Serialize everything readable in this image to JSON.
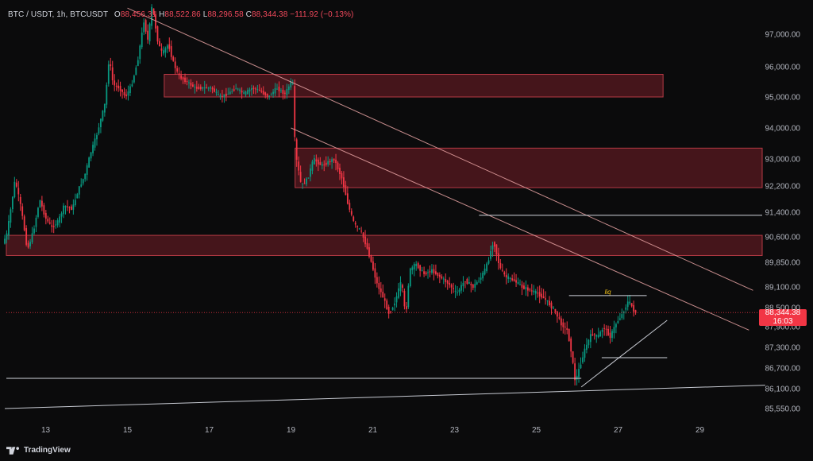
{
  "header": {
    "symbol": "BTC / USDT, 1h, BTCUSDT",
    "open_label": "O",
    "open": "88,456.31",
    "high_label": "H",
    "high": "88,522.86",
    "low_label": "L",
    "low": "88,296.58",
    "close_label": "C",
    "close": "88,344.38",
    "change": "−111.92 (−0.13%)"
  },
  "price_tag": {
    "price": "88,344.38",
    "countdown": "16:03"
  },
  "annotation": {
    "liq_label": "liq"
  },
  "footer": {
    "brand": "TradingView"
  },
  "colors": {
    "background": "#0b0b0c",
    "up_candle": "#089981",
    "down_candle": "#f23645",
    "zone_fill": "#5a1a20",
    "zone_border": "#b73a45",
    "trendline": "#e7a3a3",
    "level_line": "#d1d4dc",
    "liq_text": "#f5c518"
  },
  "chart_data": {
    "type": "candlestick",
    "title": "BTC / USDT, 1h, BTCUSDT",
    "xlabel": "",
    "ylabel": "",
    "x_ticks": [
      "13",
      "15",
      "17",
      "19",
      "21",
      "23",
      "25",
      "27",
      "29"
    ],
    "y_ticks": [
      "97,000.00",
      "96,000.00",
      "95,000.00",
      "94,000.00",
      "93,000.00",
      "92,200.00",
      "91,400.00",
      "90,600.00",
      "89,850.00",
      "89,100.00",
      "88,500.00",
      "87,900.00",
      "87,300.00",
      "86,700.00",
      "86,100.00",
      "85,550.00"
    ],
    "x_range_days": [
      12.0,
      30.6
    ],
    "grid": false,
    "last_price": 88344.38,
    "price_path": [
      [
        12.0,
        90400
      ],
      [
        12.1,
        90700
      ],
      [
        12.3,
        92400
      ],
      [
        12.45,
        91500
      ],
      [
        12.6,
        90200
      ],
      [
        12.75,
        90800
      ],
      [
        12.9,
        91800
      ],
      [
        13.05,
        91200
      ],
      [
        13.2,
        90900
      ],
      [
        13.35,
        91100
      ],
      [
        13.5,
        91600
      ],
      [
        13.7,
        91500
      ],
      [
        13.85,
        92100
      ],
      [
        14.0,
        92500
      ],
      [
        14.15,
        93200
      ],
      [
        14.3,
        93800
      ],
      [
        14.5,
        94800
      ],
      [
        14.6,
        96300
      ],
      [
        14.7,
        95400
      ],
      [
        14.85,
        95300
      ],
      [
        15.0,
        95000
      ],
      [
        15.15,
        95400
      ],
      [
        15.3,
        96200
      ],
      [
        15.45,
        97400
      ],
      [
        15.55,
        96800
      ],
      [
        15.65,
        97900
      ],
      [
        15.8,
        96700
      ],
      [
        15.9,
        96400
      ],
      [
        16.05,
        96700
      ],
      [
        16.15,
        96200
      ],
      [
        16.3,
        95700
      ],
      [
        16.5,
        95500
      ],
      [
        16.7,
        95300
      ],
      [
        16.9,
        95300
      ],
      [
        17.1,
        95300
      ],
      [
        17.3,
        95000
      ],
      [
        17.5,
        95100
      ],
      [
        17.7,
        95300
      ],
      [
        17.9,
        95100
      ],
      [
        18.1,
        95300
      ],
      [
        18.3,
        95200
      ],
      [
        18.5,
        95000
      ],
      [
        18.7,
        95300
      ],
      [
        18.9,
        95100
      ],
      [
        19.05,
        95500
      ],
      [
        19.1,
        95400
      ],
      [
        19.15,
        93200
      ],
      [
        19.3,
        92200
      ],
      [
        19.45,
        92400
      ],
      [
        19.6,
        93000
      ],
      [
        19.8,
        92800
      ],
      [
        19.95,
        92900
      ],
      [
        20.1,
        93000
      ],
      [
        20.3,
        92400
      ],
      [
        20.45,
        91600
      ],
      [
        20.6,
        91000
      ],
      [
        20.75,
        90800
      ],
      [
        20.9,
        90300
      ],
      [
        21.0,
        89900
      ],
      [
        21.15,
        89200
      ],
      [
        21.3,
        88800
      ],
      [
        21.45,
        88300
      ],
      [
        21.6,
        88700
      ],
      [
        21.75,
        89300
      ],
      [
        21.85,
        88200
      ],
      [
        21.95,
        89600
      ],
      [
        22.1,
        89800
      ],
      [
        22.3,
        89500
      ],
      [
        22.5,
        89600
      ],
      [
        22.7,
        89400
      ],
      [
        22.9,
        89200
      ],
      [
        23.1,
        88900
      ],
      [
        23.3,
        89300
      ],
      [
        23.5,
        89100
      ],
      [
        23.7,
        89400
      ],
      [
        23.85,
        89800
      ],
      [
        24.0,
        90500
      ],
      [
        24.15,
        89700
      ],
      [
        24.3,
        89400
      ],
      [
        24.5,
        89300
      ],
      [
        24.7,
        89100
      ],
      [
        24.9,
        89000
      ],
      [
        25.1,
        88900
      ],
      [
        25.3,
        88700
      ],
      [
        25.5,
        88400
      ],
      [
        25.65,
        88000
      ],
      [
        25.8,
        87800
      ],
      [
        25.9,
        87200
      ],
      [
        26.0,
        86300
      ],
      [
        26.1,
        86700
      ],
      [
        26.25,
        87300
      ],
      [
        26.4,
        87700
      ],
      [
        26.55,
        87600
      ],
      [
        26.7,
        87900
      ],
      [
        26.85,
        87600
      ],
      [
        27.0,
        88000
      ],
      [
        27.15,
        88300
      ],
      [
        27.3,
        88700
      ],
      [
        27.4,
        88500
      ],
      [
        27.45,
        88344
      ]
    ],
    "zones": [
      {
        "from_day": 15.9,
        "to_day": 28.1,
        "low": 95000,
        "high": 95750
      },
      {
        "from_day": 19.1,
        "to_day": 30.6,
        "low": 92150,
        "high": 93350
      },
      {
        "from_day": 12.0,
        "to_day": 30.6,
        "low": 90050,
        "high": 90650
      }
    ],
    "trendlines": [
      {
        "from": [
          15.0,
          97800
        ],
        "to": [
          30.3,
          89000
        ]
      },
      {
        "from": [
          19.0,
          94000
        ],
        "to": [
          30.2,
          87800
        ]
      },
      {
        "from": [
          12.0,
          85550
        ],
        "to": [
          30.6,
          86200
        ]
      },
      {
        "from": [
          26.1,
          86150
        ],
        "to": [
          28.2,
          88100
        ]
      }
    ],
    "levels": [
      {
        "price": 91300,
        "from_day": 23.6,
        "to_day": 30.6
      },
      {
        "price": 88850,
        "from_day": 25.8,
        "to_day": 27.7,
        "label": "liq"
      },
      {
        "price": 87000,
        "from_day": 26.6,
        "to_day": 28.2
      },
      {
        "price": 86400,
        "from_day": 12.0,
        "to_day": 26.1
      }
    ]
  }
}
